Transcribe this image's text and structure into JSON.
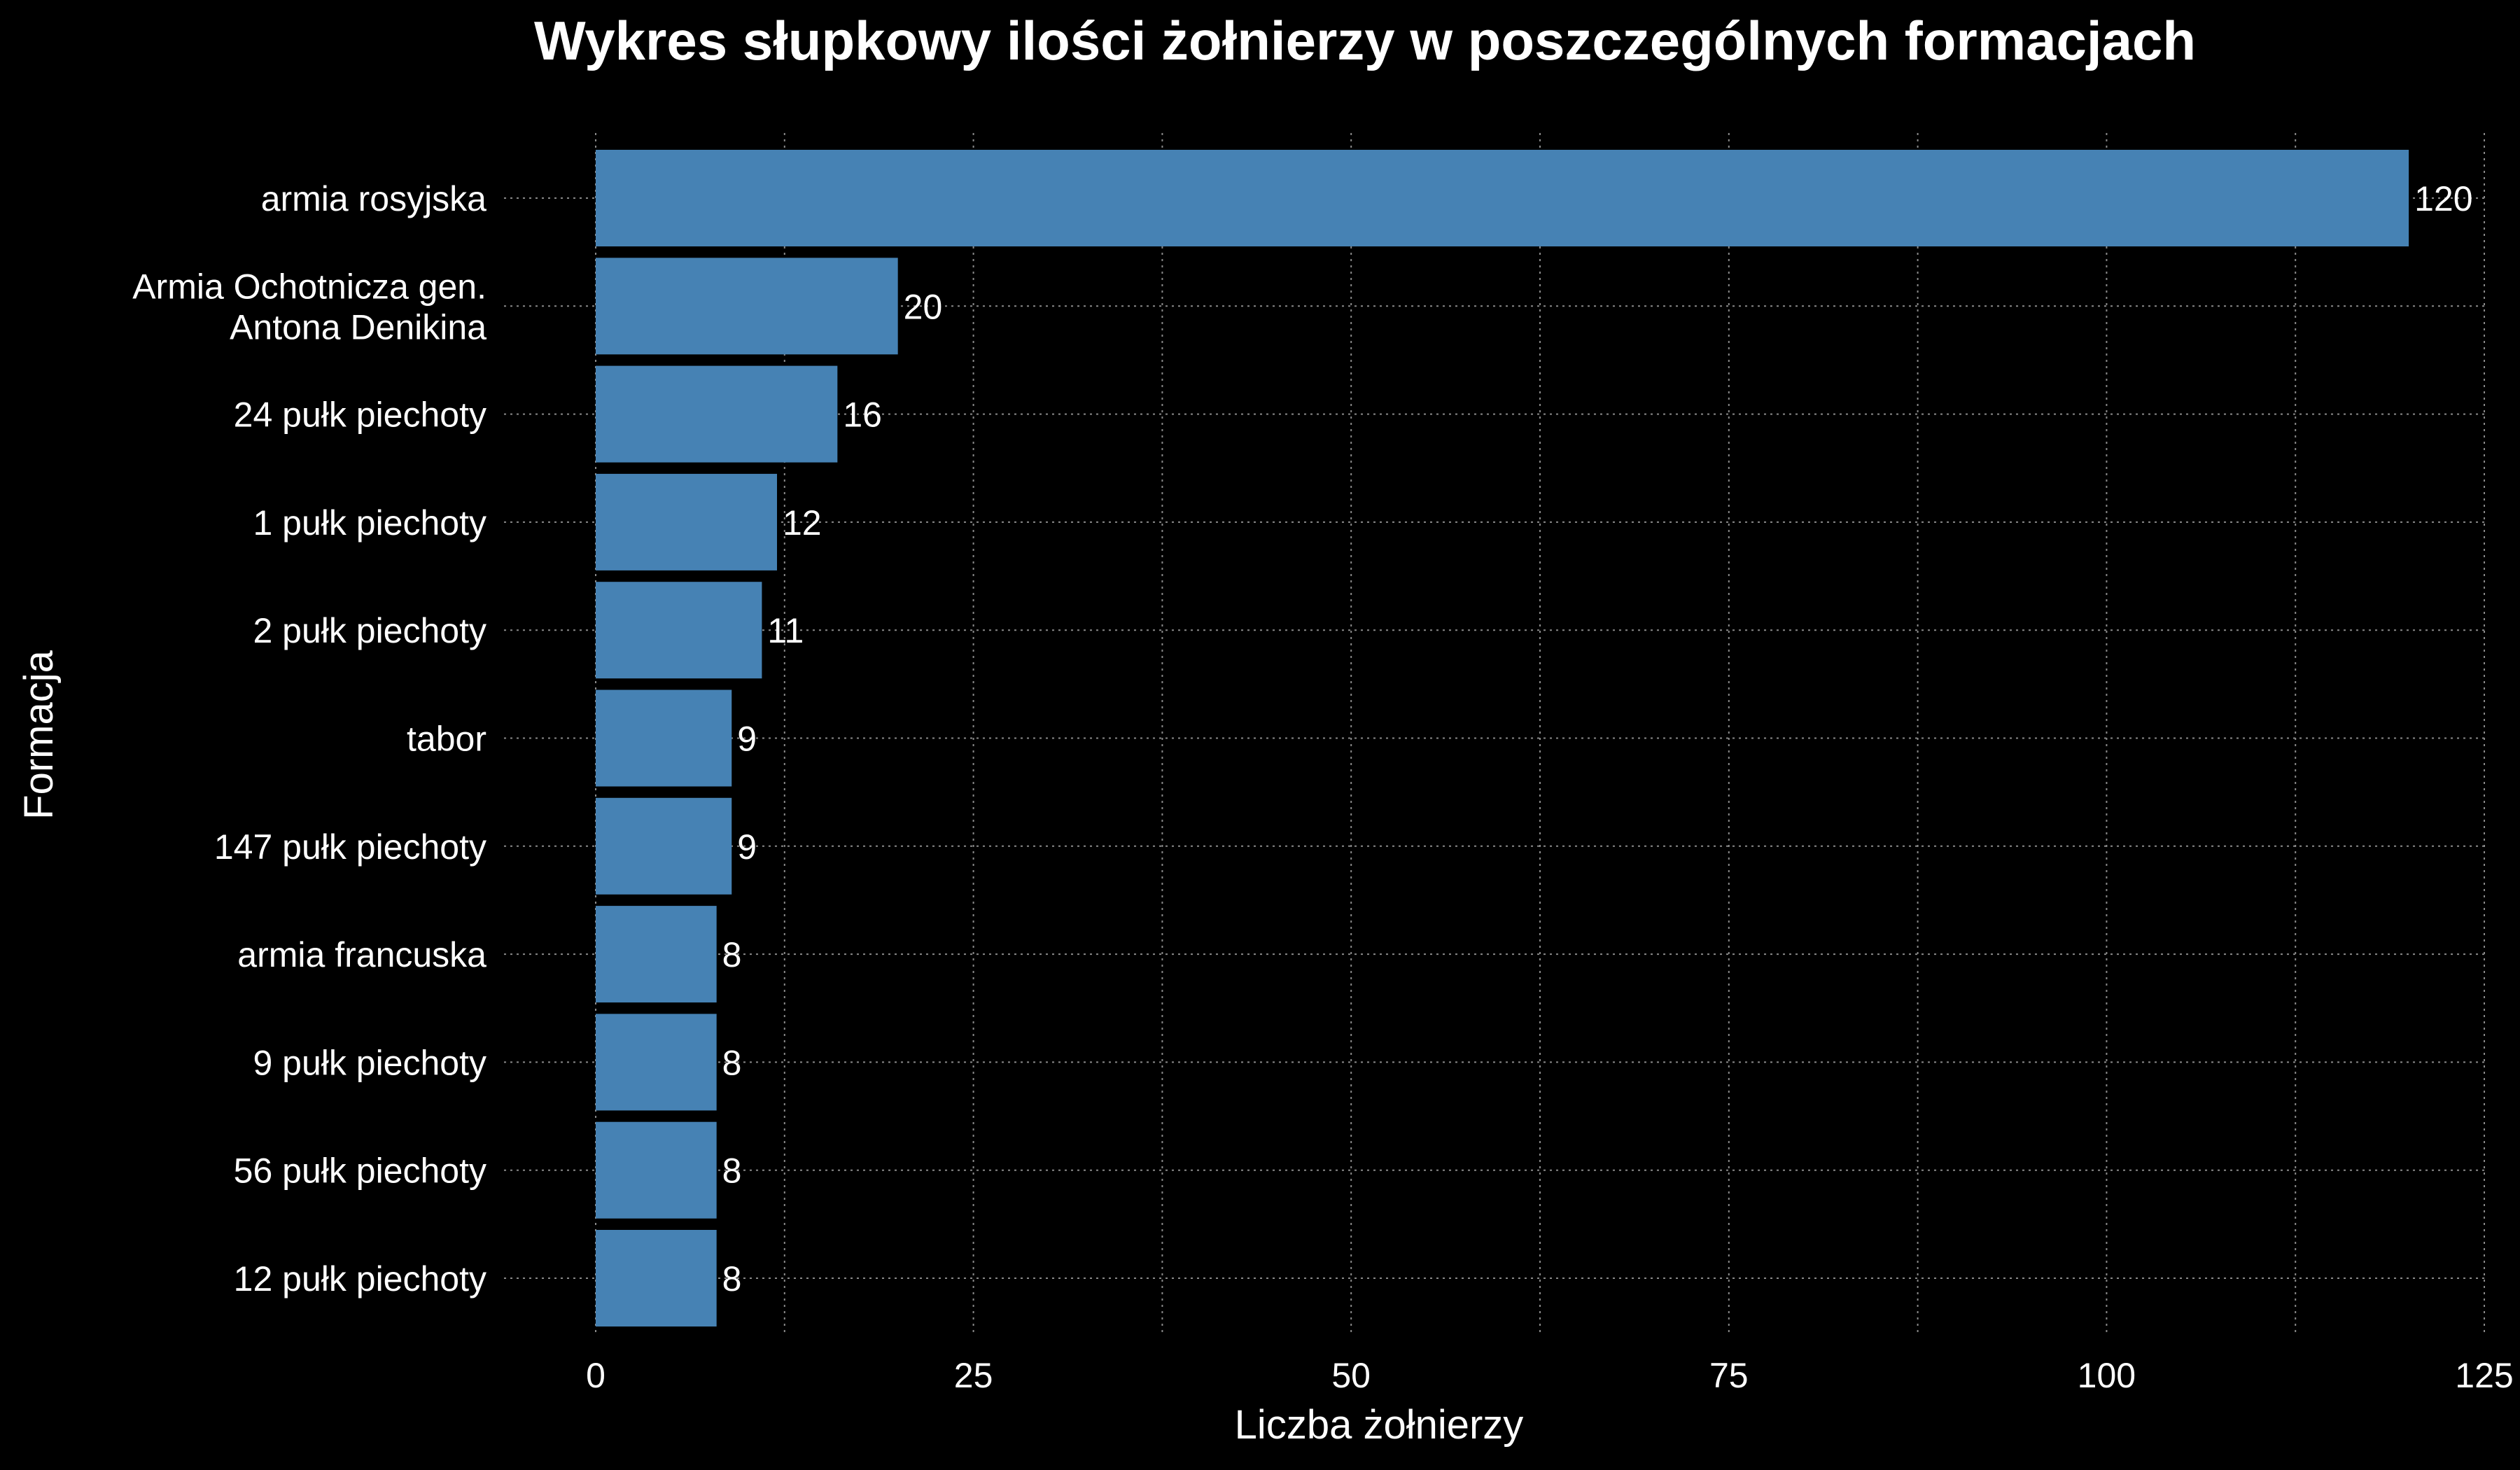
{
  "chart_data": {
    "type": "bar",
    "orientation": "horizontal",
    "title": "Wykres słupkowy ilości żołnierzy w poszczególnych formacjach",
    "xlabel": "Liczba żołnierzy",
    "ylabel": "Formacja",
    "categories": [
      "armia rosyjska",
      "Armia Ochotnicza gen.\nAntona Denikina",
      "24 pułk piechoty",
      "1 pułk piechoty",
      "2 pułk piechoty",
      "tabor",
      "147 pułk piechoty",
      "armia francuska",
      "9 pułk piechoty",
      "56 pułk piechoty",
      "12 pułk piechoty"
    ],
    "values": [
      120,
      20,
      16,
      12,
      11,
      9,
      9,
      8,
      8,
      8,
      8
    ],
    "xlim": [
      0,
      125
    ],
    "xticks": [
      0,
      25,
      50,
      75,
      100,
      125
    ],
    "grid": true,
    "bar_color": "#4682b4",
    "background": "#000000",
    "text_color": "#ffffff"
  }
}
